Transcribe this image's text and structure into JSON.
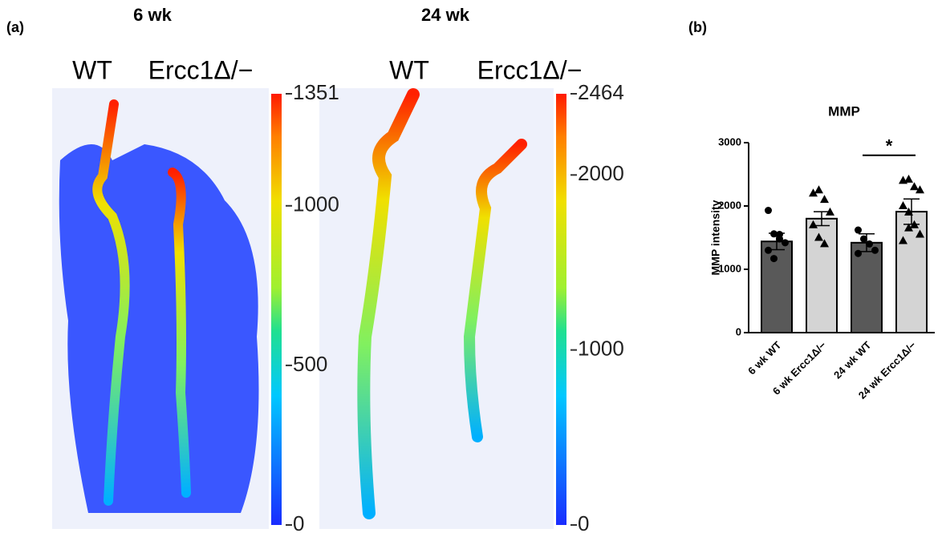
{
  "panel_a": {
    "label": "(a)",
    "images": [
      {
        "title": "6 wk",
        "labels": [
          "WT",
          "Ercc1Δ/−"
        ],
        "colorbar_lim": [
          0,
          1351
        ],
        "colorbar_ticks": [
          0,
          500,
          1000,
          1351
        ]
      },
      {
        "title": "24 wk",
        "labels": [
          "WT",
          "Ercc1Δ/−"
        ],
        "colorbar_lim": [
          0,
          2464
        ],
        "colorbar_ticks": [
          0,
          1000,
          2000,
          2464
        ]
      }
    ]
  },
  "chart_data": {
    "type": "bar",
    "panel_label": "(b)",
    "title": "MMP",
    "y_label": "MMP intensity",
    "categories": [
      "6 wk WT",
      "6 wk Ercc1Δ/−",
      "24 wk WT",
      "24 wk Ercc1Δ/−"
    ],
    "values": [
      1440,
      1800,
      1420,
      1910
    ],
    "errors": [
      130,
      110,
      140,
      200
    ],
    "colors": [
      "#595959",
      "#d4d4d4",
      "#595959",
      "#d4d4d4"
    ],
    "points": [
      [
        1930,
        1560,
        1480,
        1420,
        1300,
        1170,
        1550
      ],
      [
        2200,
        2250,
        2100,
        1900,
        1700,
        1500,
        1400
      ],
      [
        1620,
        1480,
        1400,
        1300,
        1250
      ],
      [
        2400,
        2420,
        2300,
        2250,
        2000,
        1900,
        1700,
        1550,
        1450,
        1650
      ]
    ],
    "markers": [
      "circle",
      "triangle",
      "circle",
      "triangle"
    ],
    "ylim": [
      0,
      3000
    ],
    "yticks": [
      0,
      1000,
      2000,
      3000
    ],
    "significance": {
      "text": "*",
      "from": 2,
      "to": 3,
      "y": 2800
    }
  }
}
